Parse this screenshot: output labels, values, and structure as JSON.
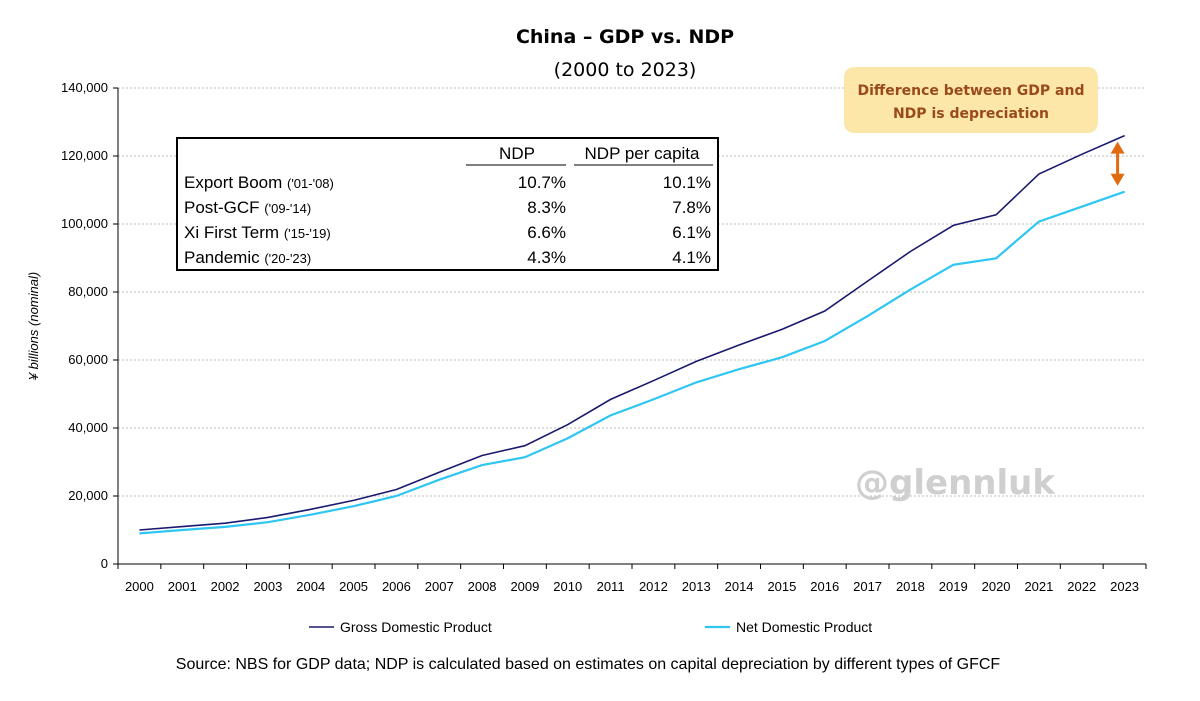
{
  "chart_data": {
    "type": "line",
    "title": "China – GDP vs. NDP",
    "subtitle": "(2000 to 2023)",
    "ylabel": "¥ billions (nominal)",
    "xlabel": "",
    "ylim": [
      0,
      140000
    ],
    "yticks": [
      "0",
      "20,000",
      "40,000",
      "60,000",
      "80,000",
      "100,000",
      "120,000",
      "140,000"
    ],
    "grid": true,
    "legend_position": "bottom",
    "categories": [
      "2000",
      "2001",
      "2002",
      "2003",
      "2004",
      "2005",
      "2006",
      "2007",
      "2008",
      "2009",
      "2010",
      "2011",
      "2012",
      "2013",
      "2014",
      "2015",
      "2016",
      "2017",
      "2018",
      "2019",
      "2020",
      "2021",
      "2022",
      "2023"
    ],
    "series": [
      {
        "name": "Gross Domestic Product",
        "color": "#1a1a6e",
        "values": [
          10000,
          11000,
          12000,
          13700,
          16100,
          18700,
          21900,
          27000,
          31900,
          34800,
          41000,
          48400,
          53900,
          59600,
          64400,
          69000,
          74400,
          83200,
          91900,
          99600,
          102700,
          114700,
          120500,
          126000
        ]
      },
      {
        "name": "Net Domestic Product",
        "color": "#2fc6f2",
        "values": [
          9000,
          10000,
          10900,
          12300,
          14500,
          17000,
          20000,
          24800,
          29100,
          31400,
          37000,
          43700,
          48400,
          53400,
          57300,
          60800,
          65600,
          72900,
          80700,
          88000,
          89900,
          100700,
          105100,
          109500
        ]
      }
    ],
    "table": {
      "headers": [
        "",
        "NDP",
        "NDP per capita"
      ],
      "rows": [
        {
          "label": "Export Boom",
          "period": "('01-'08)",
          "ndp": "10.7%",
          "per_capita": "10.1%"
        },
        {
          "label": "Post-GCF",
          "period": "('09-'14)",
          "ndp": "8.3%",
          "per_capita": "7.8%"
        },
        {
          "label": "Xi First Term",
          "period": "('15-'19)",
          "ndp": "6.6%",
          "per_capita": "6.1%"
        },
        {
          "label": "Pandemic",
          "period": "('20-'23)",
          "ndp": "4.3%",
          "per_capita": "4.1%"
        }
      ]
    },
    "callout": {
      "line1": "Difference between GDP and",
      "line2": "NDP is depreciation",
      "fill": "#fce7a8",
      "arrow_color": "#e06b10"
    },
    "watermark": "@glennluk",
    "source": "Source: NBS for GDP data; NDP is calculated based on estimates on capital depreciation by different types of GFCF"
  }
}
